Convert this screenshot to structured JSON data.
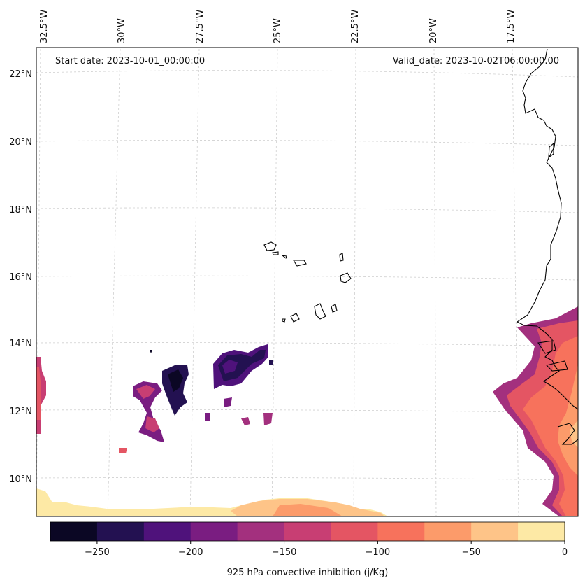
{
  "map": {
    "start_date": "Start date: 2023-10-01_00:00:00",
    "valid_date": "Valid_date: 2023-10-02T06:00:00.00",
    "lon_labels": [
      "32.5°W",
      "30°W",
      "27.5°W",
      "25°W",
      "22.5°W",
      "20°W",
      "17.5°W"
    ],
    "lat_labels": [
      "22°N",
      "20°N",
      "18°N",
      "16°N",
      "14°N",
      "12°N",
      "10°N"
    ],
    "colorbar": {
      "label": "925 hPa convective inhibition (j/Kg)",
      "tick_labels": [
        "−250",
        "−200",
        "−150",
        "−100",
        "−50",
        "0"
      ],
      "colors": [
        "#0b0724",
        "#231151",
        "#4f127b",
        "#7a1d81",
        "#a3307e",
        "#c83e73",
        "#e45563",
        "#f7725c",
        "#fc9b6a",
        "#fec488",
        "#fde9a5"
      ]
    }
  }
}
